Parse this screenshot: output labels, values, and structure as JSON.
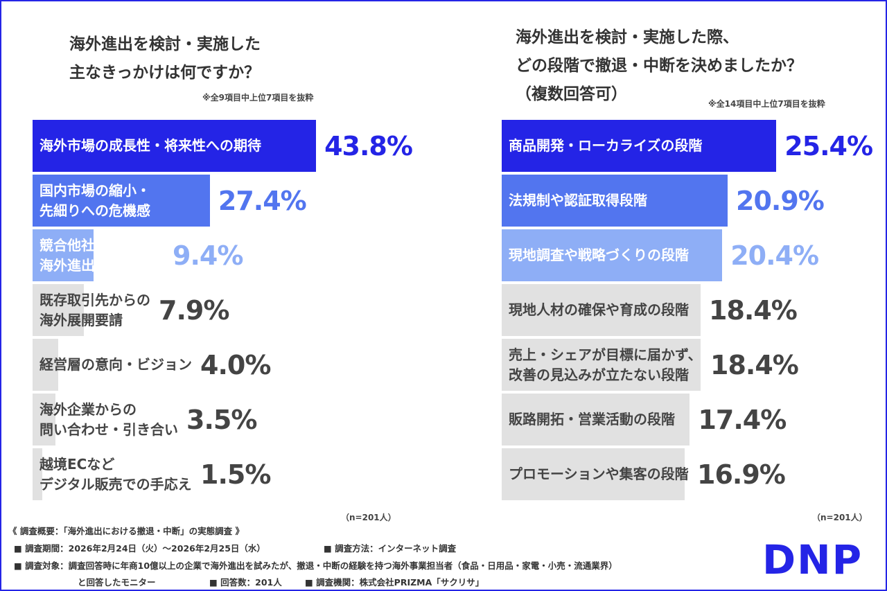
{
  "chart_data": [
    {
      "type": "bar",
      "title": [
        "海外進出を検討・実施した",
        "主なきっかけは何ですか？"
      ],
      "note": "※全9項目中上位7項目を抜粋",
      "sample": "（n=201人）",
      "categories": [
        "海外市場の成長性・将来性への期待",
        "国内市場の縮小・\n先細りへの危機感",
        "競合他社の\n海外進出状況の影響",
        "既存取引先からの\n海外展開要請",
        "経営層の意向・ビジョン",
        "海外企業からの\n問い合わせ・引き合い",
        "越境ECなど\nデジタル販売での手応え"
      ],
      "values": [
        43.8,
        27.4,
        9.4,
        7.9,
        4.0,
        3.5,
        1.5
      ],
      "value_labels": [
        "43.8%",
        "27.4%",
        "9.4%",
        "7.9%",
        "4.0%",
        "3.5%",
        "1.5%"
      ],
      "colors": [
        "#2424e6",
        "#5275ef",
        "#8eaef6",
        "#e1e1e1",
        "#e1e1e1",
        "#e1e1e1",
        "#e1e1e1"
      ]
    },
    {
      "type": "bar",
      "title": [
        "海外進出を検討・実施した際、",
        "どの段階で撤退・中断を決めましたか？",
        "（複数回答可）"
      ],
      "note": "※全14項目中上位7項目を抜粋",
      "sample": "（n=201人）",
      "categories": [
        "商品開発・ローカライズの段階",
        "法規制や認証取得段階",
        "現地調査や戦略づくりの段階",
        "現地人材の確保や育成の段階",
        "売上・シェアが目標に届かず、\n改善の見込みが立たない段階",
        "販路開拓・営業活動の段階",
        "プロモーションや集客の段階"
      ],
      "values": [
        25.4,
        20.9,
        20.4,
        18.4,
        18.4,
        17.4,
        16.9
      ],
      "value_labels": [
        "25.4%",
        "20.9%",
        "20.4%",
        "18.4%",
        "18.4%",
        "17.4%",
        "16.9%"
      ],
      "colors": [
        "#2424e6",
        "#5275ef",
        "#8eaef6",
        "#e1e1e1",
        "#e1e1e1",
        "#e1e1e1",
        "#e1e1e1"
      ]
    }
  ],
  "survey": [
    "《 調査概要：「海外進出における撤退・中断」の実態調査 》",
    "■ 調査期間：2026年2月24日（火）～2026年2月25日（水）",
    "■ 調査方法：インターネット調査",
    "■ 調査対象：調査回答時に年商10億以上の企業で海外進出を試みたが、撤退・中断の経験を持つ海外事業担当者（食品・日用品・家電・小売・流通業界）",
    "と回答したモニター",
    "■ 回答数：201人",
    "■ 調査機関：株式会社PRIZMA「サクリサ」"
  ],
  "logo": "DNP"
}
